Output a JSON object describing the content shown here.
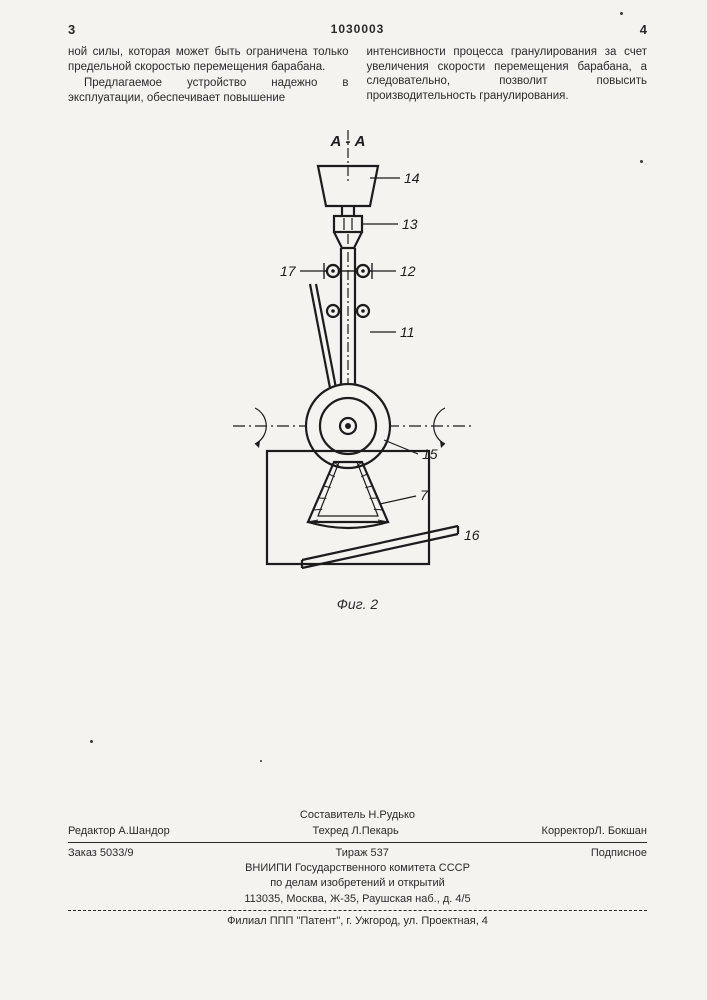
{
  "header": {
    "page_left": "3",
    "patent": "1030003",
    "page_right": "4"
  },
  "text": {
    "col1_p1": "ной силы, которая может быть ограничена только предельной скоростью перемещения барабана.",
    "col1_p2": "Предлагаемое устройство надежно в эксплуатации, обеспечивает повышение",
    "col2_p1": "интенсивности процесса гранулирования за счет увеличения скорости перемещения барабана, а следовательно, позволит повысить производительность гранулирования."
  },
  "figure": {
    "section_label": "А - А",
    "caption": "Фиг. 2",
    "labels": {
      "l7": "7",
      "l11": "11",
      "l12": "12",
      "l13": "13",
      "l14": "14",
      "l15": "15",
      "l16": "16",
      "l17": "17"
    },
    "stroke": "#1c1c1c",
    "fill_bg": "#f5f3ef",
    "stroke_w_main": 2.2,
    "stroke_w_thin": 1.2,
    "font_size_label": 14,
    "font_size_section": 15
  },
  "footer": {
    "compiler": "Составитель Н.Рудько",
    "editor": "Редактор А.Шандор",
    "tech": "Техред Л.Пекарь",
    "corrector": "КорректорЛ. Бокшан",
    "order": "Заказ 5033/9",
    "tirazh": "Тираж 537",
    "subscript": "Подписное",
    "org1": "ВНИИПИ Государственного комитета СССР",
    "org2": "по делам изобретений и открытий",
    "addr": "113035, Москва, Ж-35, Раушская наб., д. 4/5",
    "branch": "Филиал ППП \"Патент\", г. Ужгород, ул. Проектная, 4"
  }
}
